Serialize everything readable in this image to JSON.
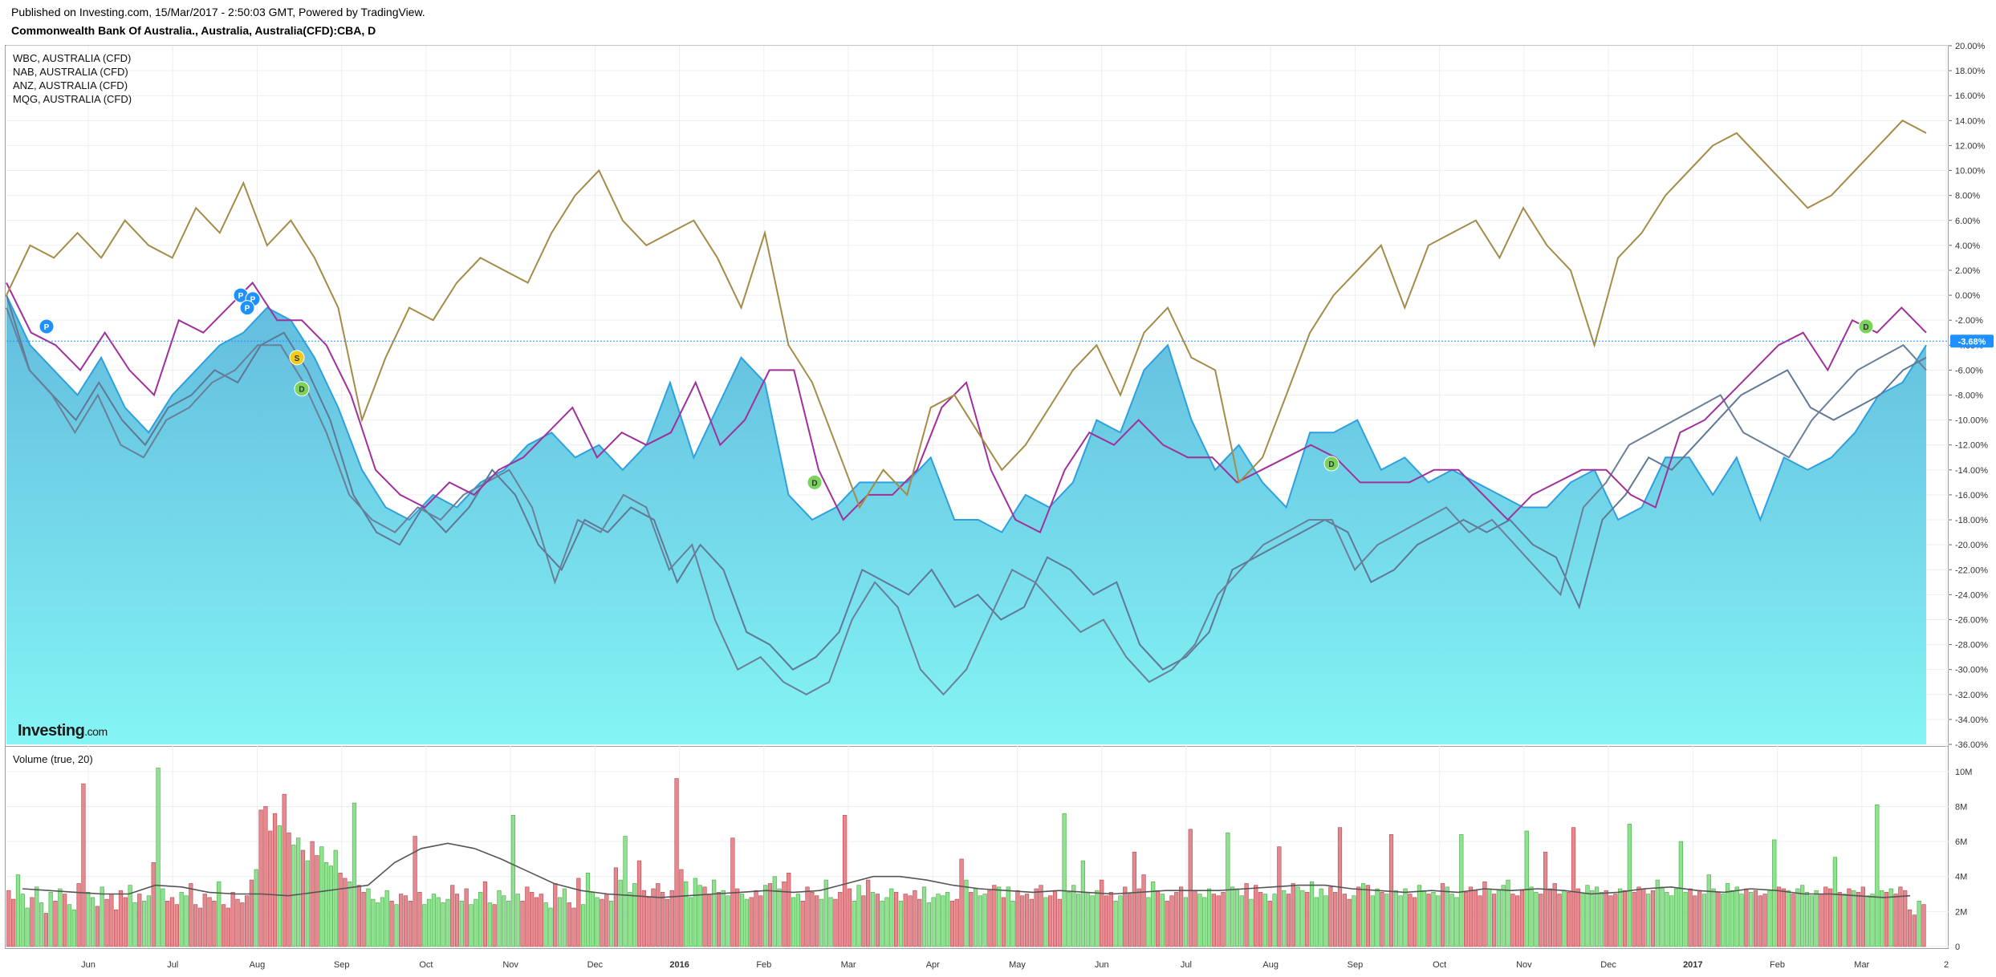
{
  "header": {
    "published": "Published on Investing.com, 15/Mar/2017 - 2:50:03 GMT, Powered by TradingView.",
    "symbol": "Commonwealth Bank Of Australia., Australia, Australia(CFD):CBA, D"
  },
  "legend": [
    "WBC, AUSTRALIA (CFD)",
    "NAB, AUSTRALIA (CFD)",
    "ANZ, AUSTRALIA (CFD)",
    "MQG, AUSTRALIA (CFD)"
  ],
  "logo": {
    "main": "Investing",
    "suffix": ".com"
  },
  "volume_title": "Volume (true, 20)",
  "colors": {
    "cba_area_top": "#5bb8dc",
    "cba_area_bottom": "#84f5f5",
    "cba_line": "#2ea0de",
    "wbc": "#5f7896",
    "nab": "#6a7f98",
    "anz": "#a0309a",
    "mqg": "#a48c48",
    "vol_up": "#8fe28f",
    "vol_down": "#e6898f",
    "vol_ma": "#555555",
    "badge_blue": "#1e90ff",
    "badge_green": "#7ad35a",
    "badge_yellow": "#f2cc1c",
    "last_price_tag": "#1e90ff"
  },
  "chart_data": [
    {
      "type": "area",
      "title": "Commonwealth Bank Of Australia., Australia, Australia(CFD):CBA, D",
      "y_unit": "%",
      "ylim": [
        -36,
        20
      ],
      "y_ticks": [
        "20.00%",
        "18.00%",
        "16.00%",
        "14.00%",
        "12.00%",
        "10.00%",
        "8.00%",
        "6.00%",
        "4.00%",
        "2.00%",
        "0.00%",
        "-2.00%",
        "-4.00%",
        "-6.00%",
        "-8.00%",
        "-10.00%",
        "-12.00%",
        "-14.00%",
        "-16.00%",
        "-18.00%",
        "-20.00%",
        "-22.00%",
        "-24.00%",
        "-26.00%",
        "-28.00%",
        "-30.00%",
        "-32.00%",
        "-34.00%",
        "-36.00%"
      ],
      "x_ticks": [
        "Jun",
        "Jul",
        "Aug",
        "Sep",
        "Oct",
        "Nov",
        "Dec",
        "2016",
        "Feb",
        "Mar",
        "Apr",
        "May",
        "Jun",
        "Jul",
        "Aug",
        "Sep",
        "Oct",
        "Nov",
        "Dec",
        "2017",
        "Feb",
        "Mar",
        "2"
      ],
      "last_value_label": "-3.68%",
      "grid": true,
      "legend_position": "top-left",
      "series": [
        {
          "name": "CBA",
          "style": "area",
          "values": [
            0,
            -4,
            -6,
            -8,
            -5,
            -9,
            -11,
            -8,
            -6,
            -4,
            -3,
            -1,
            -2,
            -5,
            -9,
            -14,
            -17,
            -18,
            -16,
            -17,
            -15,
            -14,
            -12,
            -11,
            -13,
            -12,
            -14,
            -12,
            -7,
            -13,
            -9,
            -5,
            -7,
            -16,
            -18,
            -17,
            -15,
            -15,
            -15,
            -13,
            -18,
            -18,
            -19,
            -16,
            -17,
            -15,
            -10,
            -11,
            -6,
            -4,
            -10,
            -14,
            -12,
            -15,
            -17,
            -11,
            -11,
            -10,
            -14,
            -13,
            -15,
            -14,
            -15,
            -16,
            -17,
            -17,
            -15,
            -14,
            -18,
            -17,
            -13,
            -13,
            -16,
            -13,
            -18,
            -13,
            -14,
            -13,
            -11,
            -8,
            -7,
            -4
          ]
        },
        {
          "name": "WBC",
          "style": "line",
          "values": [
            0,
            -6,
            -8,
            -10,
            -7,
            -10,
            -12,
            -9,
            -8,
            -6,
            -7,
            -4,
            -3,
            -6,
            -10,
            -16,
            -19,
            -20,
            -17,
            -19,
            -17,
            -14,
            -16,
            -20,
            -22,
            -18,
            -19,
            -17,
            -18,
            -23,
            -20,
            -22,
            -27,
            -28,
            -30,
            -29,
            -27,
            -22,
            -23,
            -24,
            -22,
            -25,
            -24,
            -26,
            -25,
            -21,
            -22,
            -24,
            -23,
            -28,
            -30,
            -29,
            -27,
            -22,
            -21,
            -20,
            -19,
            -18,
            -19,
            -23,
            -22,
            -20,
            -19,
            -18,
            -19,
            -18,
            -20,
            -21,
            -25,
            -18,
            -16,
            -13,
            -14,
            -12,
            -10,
            -8,
            -7,
            -6,
            -9,
            -10,
            -9,
            -8,
            -6,
            -5
          ]
        },
        {
          "name": "NAB",
          "style": "line",
          "values": [
            -1,
            -6,
            -8,
            -11,
            -8,
            -12,
            -13,
            -10,
            -9,
            -7,
            -6,
            -4,
            -4,
            -7,
            -11,
            -16,
            -18,
            -19,
            -17,
            -18,
            -16,
            -15,
            -14,
            -17,
            -23,
            -18,
            -19,
            -16,
            -17,
            -22,
            -20,
            -26,
            -30,
            -29,
            -31,
            -32,
            -31,
            -26,
            -23,
            -25,
            -30,
            -32,
            -30,
            -26,
            -22,
            -23,
            -25,
            -27,
            -26,
            -29,
            -31,
            -30,
            -28,
            -24,
            -22,
            -20,
            -19,
            -18,
            -18,
            -22,
            -20,
            -19,
            -18,
            -17,
            -19,
            -18,
            -20,
            -22,
            -24,
            -17,
            -15,
            -12,
            -11,
            -10,
            -9,
            -8,
            -11,
            -12,
            -13,
            -10,
            -8,
            -6,
            -5,
            -4,
            -6
          ]
        },
        {
          "name": "ANZ",
          "style": "line",
          "values": [
            1,
            -3,
            -4,
            -6,
            -3,
            -6,
            -8,
            -2,
            -3,
            -1,
            1,
            -2,
            -2,
            -4,
            -8,
            -14,
            -16,
            -17,
            -15,
            -16,
            -14,
            -13,
            -11,
            -9,
            -13,
            -11,
            -12,
            -11,
            -7,
            -12,
            -10,
            -6,
            -6,
            -14,
            -18,
            -16,
            -16,
            -14,
            -9,
            -7,
            -14,
            -18,
            -19,
            -14,
            -11,
            -12,
            -10,
            -12,
            -13,
            -13,
            -15,
            -14,
            -13,
            -12,
            -13,
            -15,
            -15,
            -15,
            -14,
            -14,
            -16,
            -18,
            -16,
            -15,
            -14,
            -14,
            -16,
            -17,
            -11,
            -10,
            -8,
            -6,
            -4,
            -3,
            -6,
            -2,
            -3,
            -1,
            -3
          ]
        },
        {
          "name": "MQG",
          "style": "line",
          "values": [
            0,
            4,
            3,
            5,
            3,
            6,
            4,
            3,
            7,
            5,
            9,
            4,
            6,
            3,
            -1,
            -10,
            -5,
            -1,
            -2,
            1,
            3,
            2,
            1,
            5,
            8,
            10,
            6,
            4,
            5,
            6,
            3,
            -1,
            5,
            -4,
            -7,
            -12,
            -17,
            -14,
            -16,
            -9,
            -8,
            -11,
            -14,
            -12,
            -9,
            -6,
            -4,
            -8,
            -3,
            -1,
            -5,
            -6,
            -15,
            -13,
            -8,
            -3,
            0,
            2,
            4,
            -1,
            4,
            5,
            6,
            3,
            7,
            4,
            2,
            -4,
            3,
            5,
            8,
            10,
            12,
            13,
            11,
            9,
            7,
            8,
            10,
            12,
            14,
            13
          ]
        }
      ]
    },
    {
      "type": "bar",
      "title": "Volume (true, 20)",
      "y_ticks": [
        "10M",
        "8M",
        "6M",
        "4M",
        "2M",
        "0"
      ],
      "ylim": [
        0,
        11
      ],
      "y_unit": "M",
      "series": [
        {
          "name": "Volume",
          "values": [
            3.2,
            2.7,
            4.1,
            3.0,
            2.2,
            2.8,
            3.4,
            2.5,
            1.9,
            3.1,
            2.6,
            3.3,
            3.0,
            2.4,
            2.1,
            3.6,
            9.3,
            3.1,
            2.8,
            2.3,
            3.4,
            2.7,
            3.0,
            2.1,
            3.2,
            2.8,
            3.5,
            2.5,
            3.0,
            2.6,
            2.9,
            4.8,
            10.2,
            3.3,
            2.6,
            2.8,
            2.4,
            3.1,
            2.9,
            3.6,
            2.4,
            2.2,
            3.0,
            2.8,
            2.6,
            3.7,
            2.4,
            2.2,
            3.1,
            2.7,
            2.5,
            2.9,
            3.8,
            4.4,
            7.8,
            8.0,
            6.6,
            7.6,
            6.9,
            8.7,
            6.5,
            5.8,
            6.2,
            5.5,
            4.9,
            6.0,
            5.2,
            5.7,
            4.8,
            4.6,
            5.5,
            4.2,
            3.9,
            3.7,
            8.2,
            3.5,
            3.1,
            3.3,
            2.7,
            2.5,
            2.8,
            3.2,
            2.6,
            2.4,
            3.0,
            2.9,
            2.6,
            6.3,
            3.1,
            2.4,
            2.7,
            3.0,
            2.8,
            2.5,
            2.7,
            3.5,
            3.0,
            2.6,
            3.3,
            2.4,
            2.7,
            3.1,
            3.7,
            2.5,
            2.4,
            3.2,
            2.9,
            2.6,
            7.5,
            3.0,
            2.6,
            3.4,
            3.1,
            2.8,
            3.0,
            2.5,
            2.2,
            3.6,
            2.8,
            3.3,
            2.5,
            2.2,
            3.9,
            2.4,
            4.2,
            3.1,
            2.8,
            2.7,
            3.0,
            2.6,
            4.5,
            3.8,
            6.3,
            3.1,
            3.6,
            4.9,
            3.2,
            2.8,
            3.3,
            3.6,
            3.1,
            2.7,
            3.2,
            9.6,
            4.4,
            3.7,
            2.8,
            3.9,
            3.5,
            3.4,
            3.0,
            3.8,
            3.1,
            3.2,
            2.9,
            6.2,
            3.3,
            3.0,
            2.7,
            2.8,
            3.2,
            2.9,
            3.5,
            3.6,
            4.0,
            3.3,
            3.7,
            4.2,
            2.8,
            3.0,
            2.6,
            3.4,
            3.1,
            2.9,
            2.7,
            3.8,
            2.8,
            2.7,
            3.1,
            7.5,
            3.3,
            2.6,
            3.5,
            2.9,
            3.8,
            3.1,
            3.0,
            2.6,
            2.8,
            3.3,
            3.1,
            2.6,
            3.0,
            2.9,
            3.2,
            2.7,
            3.4,
            2.5,
            2.8,
            3.0,
            2.9,
            3.1,
            2.6,
            2.7,
            5.0,
            3.8,
            3.1,
            3.3,
            2.9,
            3.0,
            3.2,
            3.5,
            3.4,
            2.8,
            3.4,
            2.6,
            3.2,
            2.9,
            3.0,
            2.7,
            3.3,
            3.5,
            2.8,
            2.9,
            3.2,
            2.7,
            7.6,
            3.1,
            3.5,
            3.0,
            4.9,
            3.1,
            2.9,
            3.2,
            3.8,
            2.9,
            3.1,
            2.6,
            2.9,
            3.4,
            3.0,
            5.4,
            3.3,
            4.1,
            2.8,
            3.7,
            3.2,
            3.0,
            2.6,
            2.9,
            3.1,
            3.4,
            2.8,
            6.7,
            3.2,
            3.0,
            2.8,
            3.3,
            3.0,
            2.9,
            3.1,
            6.5,
            3.4,
            3.3,
            2.9,
            3.6,
            2.7,
            3.5,
            3.1,
            3.0,
            2.6,
            3.0,
            5.7,
            3.2,
            3.0,
            3.6,
            3.4,
            3.2,
            3.1,
            3.7,
            2.8,
            3.3,
            2.9,
            3.4,
            3.1,
            6.8,
            3.0,
            2.7,
            2.9,
            3.4,
            3.6,
            3.5,
            2.9,
            3.3,
            3.1,
            3.0,
            6.4,
            3.2,
            2.9,
            3.3,
            3.0,
            2.8,
            3.5,
            3.2,
            3.0,
            3.1,
            2.9,
            3.6,
            3.4,
            3.0,
            2.8,
            6.4,
            3.1,
            3.4,
            3.2,
            2.9,
            3.7,
            3.3,
            3.0,
            3.2,
            3.5,
            3.8,
            3.0,
            2.9,
            3.2,
            6.6,
            3.4,
            3.1,
            3.0,
            5.4,
            3.3,
            3.6,
            3.0,
            3.2,
            3.1,
            6.8,
            3.3,
            3.0,
            3.5,
            3.2,
            3.4,
            3.1,
            3.2,
            2.9,
            3.0,
            3.3,
            3.2,
            7.0,
            3.1,
            3.4,
            3.3,
            3.0,
            3.2,
            3.8,
            3.4,
            3.1,
            2.9,
            3.3,
            6.0,
            3.1,
            3.3,
            2.9,
            3.2,
            3.0,
            4.1,
            3.3,
            3.1,
            3.0,
            3.6,
            3.2,
            3.4,
            3.0,
            3.3,
            3.1,
            3.2,
            2.9,
            3.0,
            3.2,
            6.1,
            3.4,
            3.3,
            3.2,
            3.0,
            3.3,
            3.5,
            3.1,
            2.9,
            3.2,
            3.0,
            3.4,
            3.3,
            5.1,
            3.1,
            3.0,
            3.3,
            3.2,
            3.1,
            3.4,
            2.9,
            3.0,
            8.1,
            3.2,
            3.1,
            3.3,
            3.0,
            3.4,
            3.2,
            2.1,
            1.8,
            2.6,
            2.4
          ]
        },
        {
          "name": "MA 20",
          "values": [
            3.3,
            3.2,
            3.1,
            3.0,
            3.0,
            3.5,
            3.4,
            3.1,
            3.0,
            3.0,
            2.9,
            3.1,
            3.3,
            3.5,
            4.8,
            5.6,
            5.9,
            5.6,
            5.0,
            4.3,
            3.6,
            3.2,
            3.0,
            2.9,
            2.8,
            2.9,
            3.0,
            3.1,
            3.2,
            3.1,
            3.2,
            3.6,
            4.0,
            4.0,
            3.8,
            3.5,
            3.3,
            3.2,
            3.1,
            3.2,
            3.1,
            3.0,
            3.1,
            3.2,
            3.2,
            3.2,
            3.3,
            3.4,
            3.5,
            3.5,
            3.3,
            3.2,
            3.1,
            3.2,
            3.1,
            3.3,
            3.2,
            3.3,
            3.2,
            3.0,
            3.1,
            3.3,
            3.4,
            3.2,
            3.1,
            3.3,
            3.2,
            3.0,
            3.0,
            2.9,
            2.8,
            2.9
          ]
        }
      ]
    }
  ]
}
